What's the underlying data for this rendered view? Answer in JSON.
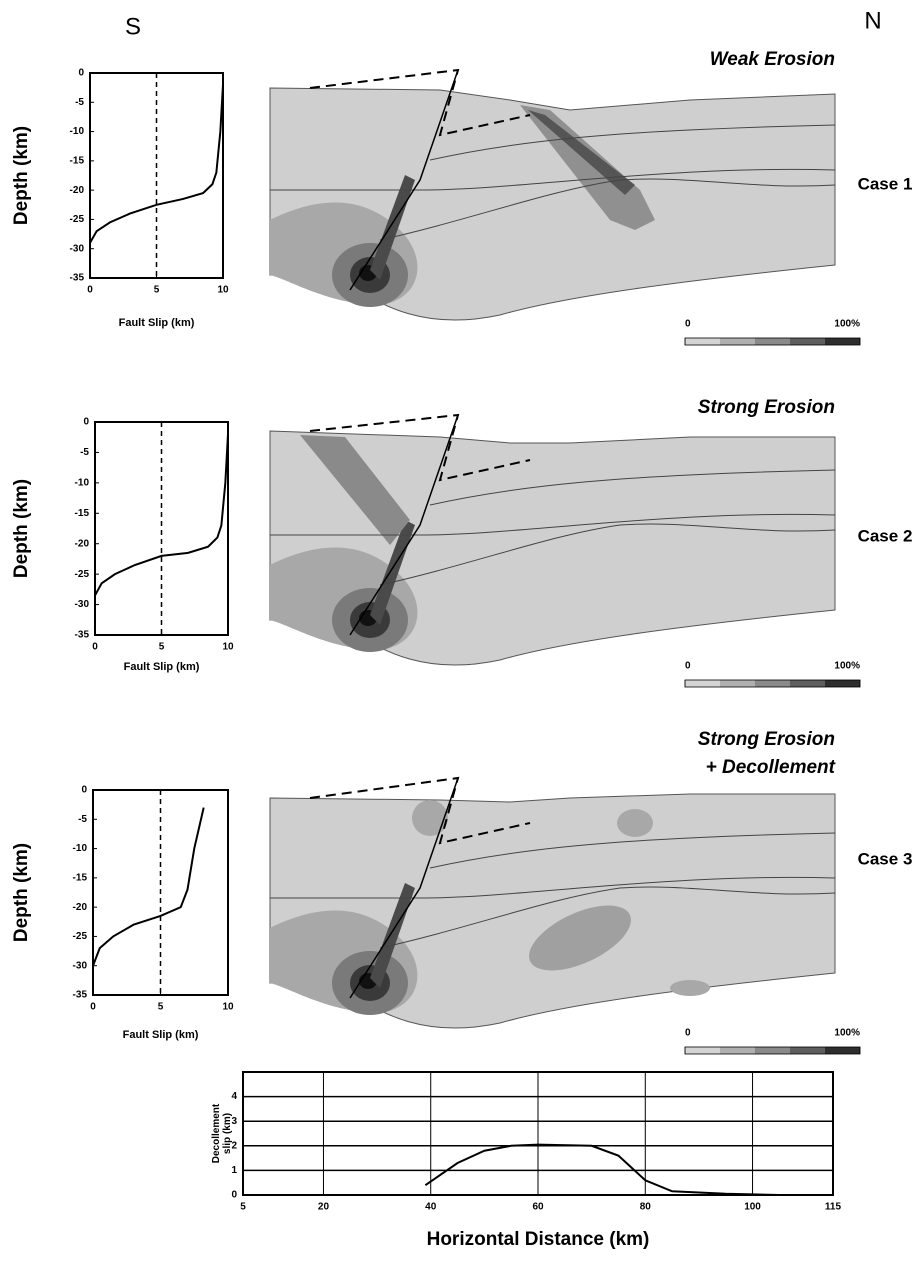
{
  "labels": {
    "south": "S",
    "north": "N"
  },
  "chart_data": [
    {
      "type": "line",
      "xlabel": "Fault Slip (km)",
      "ylabel": "Depth (km)",
      "xlim": [
        0,
        10
      ],
      "ylim": [
        -35,
        0
      ],
      "xticks": [
        0,
        5,
        10
      ],
      "yticks": [
        0,
        -5,
        -10,
        -15,
        -20,
        -25,
        -30,
        -35
      ],
      "series": [
        {
          "color": "#000",
          "dash": false,
          "x": [
            0,
            0.5,
            1.5,
            3,
            5,
            7,
            8.5,
            9.2,
            9.5,
            9.8,
            10
          ],
          "values": [
            -29,
            -27,
            -25.5,
            -24,
            -22.5,
            -21.5,
            -20.5,
            -19,
            -17,
            -10,
            -2
          ]
        },
        {
          "color": "#000",
          "dash": true,
          "x": [
            5,
            5
          ],
          "values": [
            0,
            -35
          ]
        }
      ]
    },
    {
      "type": "section",
      "title": [
        "Weak Erosion"
      ],
      "case_label": "Case 1",
      "variant": 1,
      "colorbar": {
        "lim": [
          0,
          100
        ],
        "ticks": [
          {
            "value": 0,
            "label": "0"
          },
          {
            "value": 100,
            "label": "100%"
          }
        ],
        "colors": [
          "#d4d4d4",
          "#b0b0b0",
          "#8a8a8a",
          "#5e5e5e",
          "#2e2e2e"
        ]
      }
    },
    {
      "type": "line",
      "xlabel": "Fault Slip (km)",
      "ylabel": "Depth (km)",
      "xlim": [
        0,
        10
      ],
      "ylim": [
        -35,
        0
      ],
      "xticks": [
        0,
        5,
        10
      ],
      "yticks": [
        0,
        -5,
        -10,
        -15,
        -20,
        -25,
        -30,
        -35
      ],
      "series": [
        {
          "color": "#000",
          "dash": false,
          "x": [
            0,
            0.5,
            1.5,
            3,
            5,
            7,
            8.5,
            9.2,
            9.5,
            9.8,
            10
          ],
          "values": [
            -28.5,
            -26.5,
            -25,
            -23.5,
            -22,
            -21.5,
            -20.5,
            -19,
            -17,
            -10,
            -2
          ]
        },
        {
          "color": "#000",
          "dash": true,
          "x": [
            5,
            5
          ],
          "values": [
            0,
            -35
          ]
        }
      ]
    },
    {
      "type": "section",
      "title": [
        "Strong Erosion"
      ],
      "case_label": "Case 2",
      "variant": 2,
      "colorbar": {
        "lim": [
          0,
          100
        ],
        "ticks": [
          {
            "value": 0,
            "label": "0"
          },
          {
            "value": 100,
            "label": "100%"
          }
        ],
        "colors": [
          "#d4d4d4",
          "#b0b0b0",
          "#8a8a8a",
          "#5e5e5e",
          "#2e2e2e"
        ]
      }
    },
    {
      "type": "line",
      "xlabel": "Fault Slip (km)",
      "ylabel": "Depth (km)",
      "xlim": [
        0,
        10
      ],
      "ylim": [
        -35,
        0
      ],
      "xticks": [
        0,
        5,
        10
      ],
      "yticks": [
        0,
        -5,
        -10,
        -15,
        -20,
        -25,
        -30,
        -35
      ],
      "series": [
        {
          "color": "#000",
          "dash": false,
          "x": [
            0,
            0.5,
            1.5,
            3,
            5,
            6.5,
            7,
            7.5,
            8.2
          ],
          "values": [
            -30,
            -27,
            -25,
            -23,
            -21.5,
            -20,
            -17,
            -10,
            -3
          ]
        },
        {
          "color": "#000",
          "dash": true,
          "x": [
            5,
            5
          ],
          "values": [
            0,
            -35
          ]
        }
      ]
    },
    {
      "type": "section",
      "title": [
        "Strong Erosion",
        "+ Decollement"
      ],
      "case_label": "Case 3",
      "variant": 3,
      "colorbar": {
        "lim": [
          0,
          100
        ],
        "ticks": [
          {
            "value": 0,
            "label": "0"
          },
          {
            "value": 100,
            "label": "100%"
          }
        ],
        "colors": [
          "#d4d4d4",
          "#b0b0b0",
          "#8a8a8a",
          "#5e5e5e",
          "#2e2e2e"
        ]
      }
    },
    {
      "type": "line",
      "xlabel": "Horizontal Distance (km)",
      "ylabel": [
        "Decollement",
        "slip (km)"
      ],
      "grid": true,
      "xlim": [
        5,
        115
      ],
      "ylim": [
        0,
        5
      ],
      "xticks": [
        5,
        20,
        40,
        60,
        80,
        100,
        115
      ],
      "yticks": [
        0,
        1,
        2,
        3,
        4
      ],
      "series": [
        {
          "color": "#000",
          "dash": false,
          "x": [
            39,
            45,
            50,
            55,
            60,
            70,
            75,
            80,
            85,
            95,
            105
          ],
          "values": [
            0.4,
            1.3,
            1.8,
            2,
            2.05,
            2,
            1.6,
            0.6,
            0.15,
            0.05,
            0
          ]
        }
      ]
    }
  ]
}
